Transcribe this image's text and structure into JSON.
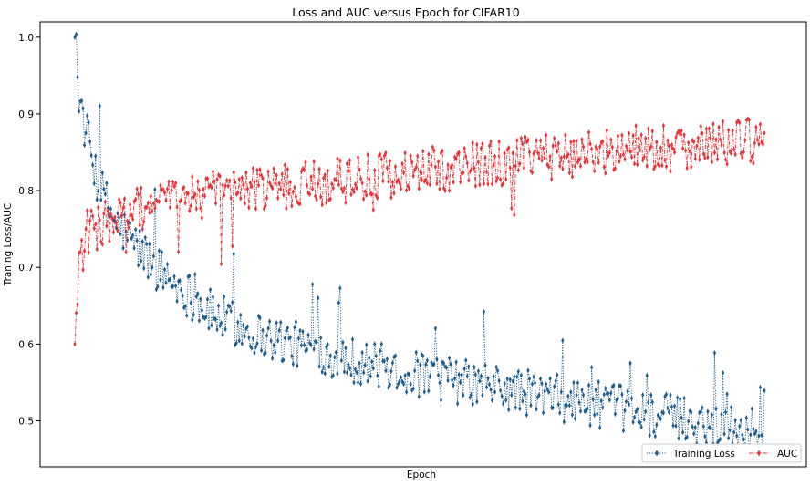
{
  "chart_data": {
    "type": "line",
    "title": "Loss and AUC versus Epoch for CIFAR10",
    "xlabel": "Epoch",
    "ylabel": "Traning Loss/AUC",
    "ylim": [
      0.44,
      1.02
    ],
    "yticks": [
      "0.5",
      "0.6",
      "0.7",
      "0.8",
      "0.9",
      "1.0"
    ],
    "grid": false,
    "legend": {
      "location": "bottom-right",
      "ncol": 2
    },
    "x": {
      "start": 1,
      "end": 500
    },
    "series": [
      {
        "name": "Training Loss",
        "color": "#1f5d8c",
        "linestyle": "dotted",
        "marker": "thin-diamond",
        "anchors": [
          [
            1,
            1.0
          ],
          [
            3,
            0.94
          ],
          [
            6,
            0.9
          ],
          [
            10,
            0.87
          ],
          [
            15,
            0.83
          ],
          [
            20,
            0.8
          ],
          [
            30,
            0.76
          ],
          [
            45,
            0.73
          ],
          [
            60,
            0.7
          ],
          [
            80,
            0.67
          ],
          [
            100,
            0.64
          ],
          [
            130,
            0.615
          ],
          [
            160,
            0.6
          ],
          [
            200,
            0.58
          ],
          [
            250,
            0.56
          ],
          [
            300,
            0.545
          ],
          [
            350,
            0.53
          ],
          [
            400,
            0.515
          ],
          [
            450,
            0.5
          ],
          [
            500,
            0.485
          ]
        ],
        "noise": 0.03
      },
      {
        "name": "AUC",
        "color": "#e8333a",
        "linestyle": "dashdot",
        "marker": "thin-diamond",
        "anchors": [
          [
            1,
            0.6
          ],
          [
            3,
            0.68
          ],
          [
            6,
            0.72
          ],
          [
            10,
            0.745
          ],
          [
            20,
            0.755
          ],
          [
            40,
            0.77
          ],
          [
            60,
            0.785
          ],
          [
            80,
            0.79
          ],
          [
            100,
            0.795
          ],
          [
            150,
            0.805
          ],
          [
            200,
            0.815
          ],
          [
            250,
            0.825
          ],
          [
            300,
            0.835
          ],
          [
            350,
            0.845
          ],
          [
            400,
            0.855
          ],
          [
            450,
            0.86
          ],
          [
            500,
            0.865
          ]
        ],
        "noise": 0.03
      }
    ]
  }
}
